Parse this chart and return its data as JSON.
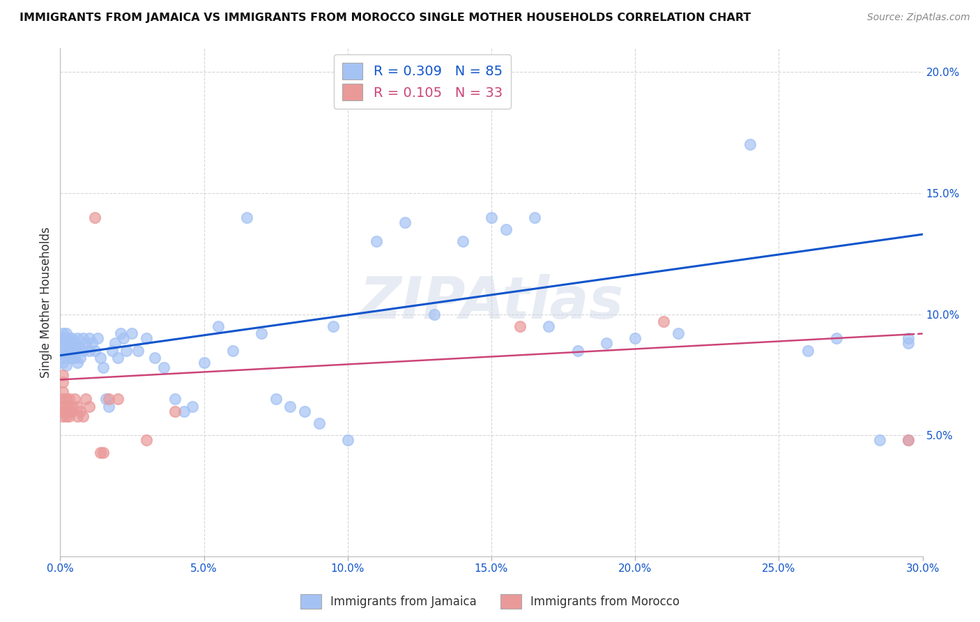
{
  "title": "IMMIGRANTS FROM JAMAICA VS IMMIGRANTS FROM MOROCCO SINGLE MOTHER HOUSEHOLDS CORRELATION CHART",
  "source": "Source: ZipAtlas.com",
  "ylabel": "Single Mother Households",
  "xlim": [
    0.0,
    0.3
  ],
  "ylim": [
    0.0,
    0.21
  ],
  "xtick_vals": [
    0.0,
    0.05,
    0.1,
    0.15,
    0.2,
    0.25,
    0.3
  ],
  "xtick_labels": [
    "0.0%",
    "5.0%",
    "10.0%",
    "15.0%",
    "20.0%",
    "25.0%",
    "30.0%"
  ],
  "ytick_vals": [
    0.0,
    0.05,
    0.1,
    0.15,
    0.2
  ],
  "ytick_labels": [
    "",
    "5.0%",
    "10.0%",
    "15.0%",
    "20.0%"
  ],
  "jamaica_R": 0.309,
  "jamaica_N": 85,
  "morocco_R": 0.105,
  "morocco_N": 33,
  "jamaica_color": "#a4c2f4",
  "morocco_color": "#ea9999",
  "jamaica_line_color": "#1155cc",
  "morocco_line_color": "#cc4477",
  "watermark": "ZIPAtlas",
  "jamaica_line_x0": 0.0,
  "jamaica_line_y0": 0.083,
  "jamaica_line_x1": 0.3,
  "jamaica_line_y1": 0.133,
  "morocco_line_x0": 0.0,
  "morocco_line_y0": 0.073,
  "morocco_line_x1": 0.3,
  "morocco_line_y1": 0.092,
  "jamaica_x": [
    0.001,
    0.001,
    0.001,
    0.001,
    0.001,
    0.001,
    0.002,
    0.002,
    0.002,
    0.002,
    0.002,
    0.002,
    0.003,
    0.003,
    0.003,
    0.003,
    0.003,
    0.004,
    0.004,
    0.004,
    0.004,
    0.005,
    0.005,
    0.005,
    0.006,
    0.006,
    0.006,
    0.007,
    0.007,
    0.008,
    0.008,
    0.009,
    0.01,
    0.01,
    0.011,
    0.012,
    0.013,
    0.014,
    0.015,
    0.016,
    0.017,
    0.018,
    0.019,
    0.02,
    0.021,
    0.022,
    0.023,
    0.025,
    0.027,
    0.03,
    0.033,
    0.036,
    0.04,
    0.043,
    0.046,
    0.05,
    0.055,
    0.06,
    0.065,
    0.07,
    0.075,
    0.08,
    0.085,
    0.09,
    0.095,
    0.1,
    0.11,
    0.12,
    0.13,
    0.14,
    0.15,
    0.155,
    0.165,
    0.17,
    0.18,
    0.19,
    0.2,
    0.215,
    0.24,
    0.26,
    0.27,
    0.285,
    0.295,
    0.295,
    0.295
  ],
  "jamaica_y": [
    0.085,
    0.088,
    0.09,
    0.082,
    0.08,
    0.092,
    0.085,
    0.09,
    0.088,
    0.083,
    0.079,
    0.092,
    0.085,
    0.09,
    0.088,
    0.082,
    0.086,
    0.082,
    0.086,
    0.09,
    0.085,
    0.082,
    0.088,
    0.085,
    0.08,
    0.086,
    0.09,
    0.082,
    0.086,
    0.085,
    0.09,
    0.088,
    0.085,
    0.09,
    0.088,
    0.085,
    0.09,
    0.082,
    0.078,
    0.065,
    0.062,
    0.085,
    0.088,
    0.082,
    0.092,
    0.09,
    0.085,
    0.092,
    0.085,
    0.09,
    0.082,
    0.078,
    0.065,
    0.06,
    0.062,
    0.08,
    0.095,
    0.085,
    0.14,
    0.092,
    0.065,
    0.062,
    0.06,
    0.055,
    0.095,
    0.048,
    0.13,
    0.138,
    0.1,
    0.13,
    0.14,
    0.135,
    0.14,
    0.095,
    0.085,
    0.088,
    0.09,
    0.092,
    0.17,
    0.085,
    0.09,
    0.048,
    0.048,
    0.088,
    0.09
  ],
  "morocco_x": [
    0.001,
    0.001,
    0.001,
    0.001,
    0.001,
    0.001,
    0.001,
    0.002,
    0.002,
    0.002,
    0.002,
    0.003,
    0.003,
    0.003,
    0.004,
    0.004,
    0.005,
    0.006,
    0.006,
    0.007,
    0.008,
    0.009,
    0.01,
    0.012,
    0.014,
    0.015,
    0.017,
    0.02,
    0.03,
    0.04,
    0.16,
    0.21,
    0.295
  ],
  "morocco_y": [
    0.072,
    0.068,
    0.065,
    0.062,
    0.06,
    0.058,
    0.075,
    0.065,
    0.06,
    0.062,
    0.058,
    0.06,
    0.058,
    0.065,
    0.062,
    0.06,
    0.065,
    0.062,
    0.058,
    0.06,
    0.058,
    0.065,
    0.062,
    0.14,
    0.043,
    0.043,
    0.065,
    0.065,
    0.048,
    0.06,
    0.095,
    0.097,
    0.048
  ]
}
